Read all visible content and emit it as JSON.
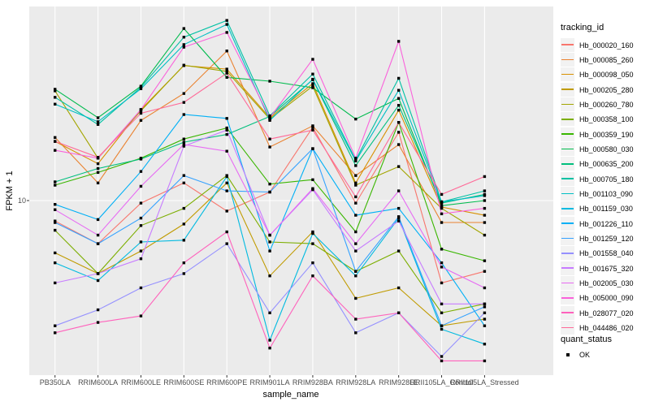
{
  "chart_data": {
    "type": "line",
    "xlabel": "sample_name",
    "ylabel": "FPKM + 1",
    "y_scale": "log10",
    "ylim": [
      2.5,
      45
    ],
    "y_ticks": [
      {
        "value": 10,
        "label": "10"
      }
    ],
    "grid": "on",
    "panel_bg": "#EBEBEB",
    "gridline_color": "#FFFFFF",
    "marker": {
      "shape": "square",
      "color": "#000000"
    },
    "legend_position": "right",
    "legend_title": "tracking_id",
    "quant_status": {
      "title": "quant_status",
      "items": [
        {
          "label": "OK",
          "marker": "black-square"
        }
      ]
    },
    "categories": [
      "PB350LA",
      "RRIM600LA",
      "RRIM600LE",
      "RRIM600SE",
      "RRIM600PE",
      "RRIM901LA",
      "RRIM928BA",
      "RRIM928LA",
      "RRIM928LE",
      "RRII105LA_Control",
      "RRII105LA_Stressed"
    ],
    "series": [
      {
        "name": "Hb_000020_160",
        "color": "#F8766D",
        "values": [
          8.5,
          7.1,
          9.8,
          11.5,
          9.2,
          10.7,
          17.9,
          9.8,
          17.2,
          5.2,
          5.7
        ]
      },
      {
        "name": "Hb_000085_260",
        "color": "#EA8331",
        "values": [
          16.5,
          11.5,
          18.9,
          23.4,
          32.8,
          15.3,
          18.1,
          12.2,
          15.6,
          8.4,
          8.4
        ]
      },
      {
        "name": "Hb_000098_050",
        "color": "#D89000",
        "values": [
          16.0,
          13.4,
          20.6,
          29.2,
          28.4,
          19.3,
          25.3,
          11.5,
          20.5,
          9.5,
          8.9
        ]
      },
      {
        "name": "Hb_000205_280",
        "color": "#C09B00",
        "values": [
          6.6,
          5.6,
          6.7,
          8.3,
          11.5,
          5.5,
          7.8,
          4.6,
          5.0,
          3.7,
          3.9
        ]
      },
      {
        "name": "Hb_000260_780",
        "color": "#A3A500",
        "values": [
          23.9,
          14.0,
          20.4,
          29.3,
          27.9,
          19.1,
          24.8,
          11.3,
          13.1,
          9.4,
          7.6
        ]
      },
      {
        "name": "Hb_000358_100",
        "color": "#7CAE00",
        "values": [
          7.9,
          5.6,
          8.2,
          9.4,
          12.2,
          7.2,
          7.1,
          5.7,
          6.7,
          4.1,
          4.4
        ]
      },
      {
        "name": "Hb_000359_190",
        "color": "#39B600",
        "values": [
          11.3,
          12.5,
          14.0,
          16.3,
          17.8,
          11.4,
          11.8,
          7.8,
          18.6,
          6.8,
          6.2
        ]
      },
      {
        "name": "Hb_000580_030",
        "color": "#00BB4E",
        "values": [
          24.2,
          19.3,
          24.8,
          39.2,
          26.6,
          25.8,
          24.5,
          19.1,
          22.5,
          9.6,
          10.0
        ]
      },
      {
        "name": "Hb_000635_200",
        "color": "#00BF7D",
        "values": [
          11.6,
          12.9,
          13.9,
          15.9,
          16.9,
          19.5,
          26.1,
          13.2,
          21.3,
          9.8,
          10.5
        ]
      },
      {
        "name": "Hb_000705_180",
        "color": "#00C1A3",
        "values": [
          22.7,
          18.3,
          24.6,
          36.6,
          41.8,
          19.6,
          27.3,
          13.8,
          26.4,
          9.9,
          10.8
        ]
      },
      {
        "name": "Hb_001103_090",
        "color": "#00BFC4",
        "values": [
          21.5,
          18.7,
          24.3,
          34.5,
          40.5,
          18.9,
          26.2,
          13.7,
          24.0,
          9.9,
          10.4
        ]
      },
      {
        "name": "Hb_001159_030",
        "color": "#00BAE0",
        "values": [
          6.1,
          5.3,
          7.2,
          7.3,
          12.1,
          3.3,
          7.7,
          5.5,
          8.7,
          3.6,
          3.2
        ]
      },
      {
        "name": "Hb_001226_110",
        "color": "#00B0F6",
        "values": [
          9.7,
          8.6,
          12.6,
          19.8,
          19.2,
          6.7,
          15.1,
          8.9,
          9.4,
          6.1,
          3.7
        ]
      },
      {
        "name": "Hb_001259_120",
        "color": "#35A2FF",
        "values": [
          8.4,
          7.1,
          8.7,
          12.2,
          10.8,
          10.7,
          15.1,
          5.7,
          8.8,
          3.7,
          4.3
        ]
      },
      {
        "name": "Hb_001558_040",
        "color": "#9590FF",
        "values": [
          3.7,
          4.2,
          5.0,
          5.6,
          7.1,
          4.1,
          6.1,
          3.5,
          4.1,
          2.9,
          4.1
        ]
      },
      {
        "name": "Hb_001675_320",
        "color": "#C77CFF",
        "values": [
          5.2,
          5.6,
          6.3,
          15.4,
          17.5,
          7.6,
          10.9,
          6.7,
          8.5,
          4.4,
          4.4
        ]
      },
      {
        "name": "Hb_002005_030",
        "color": "#E76BF3",
        "values": [
          9.3,
          7.6,
          11.2,
          15.6,
          14.8,
          7.6,
          11.0,
          7.1,
          10.8,
          5.9,
          5.0
        ]
      },
      {
        "name": "Hb_005000_090",
        "color": "#FA62DB",
        "values": [
          14.9,
          14.0,
          20.6,
          33.8,
          38.0,
          19.3,
          30.7,
          14.0,
          35.4,
          9.0,
          9.4
        ]
      },
      {
        "name": "Hb_028077_020",
        "color": "#FF62BC",
        "values": [
          3.5,
          3.8,
          4.0,
          6.1,
          7.8,
          3.1,
          5.5,
          3.9,
          4.1,
          2.8,
          2.8
        ]
      },
      {
        "name": "Hb_044486_020",
        "color": "#FF6A98",
        "values": [
          16.0,
          14.1,
          20.0,
          21.8,
          27.5,
          16.3,
          17.5,
          10.3,
          18.6,
          10.5,
          12.1
        ]
      }
    ]
  }
}
